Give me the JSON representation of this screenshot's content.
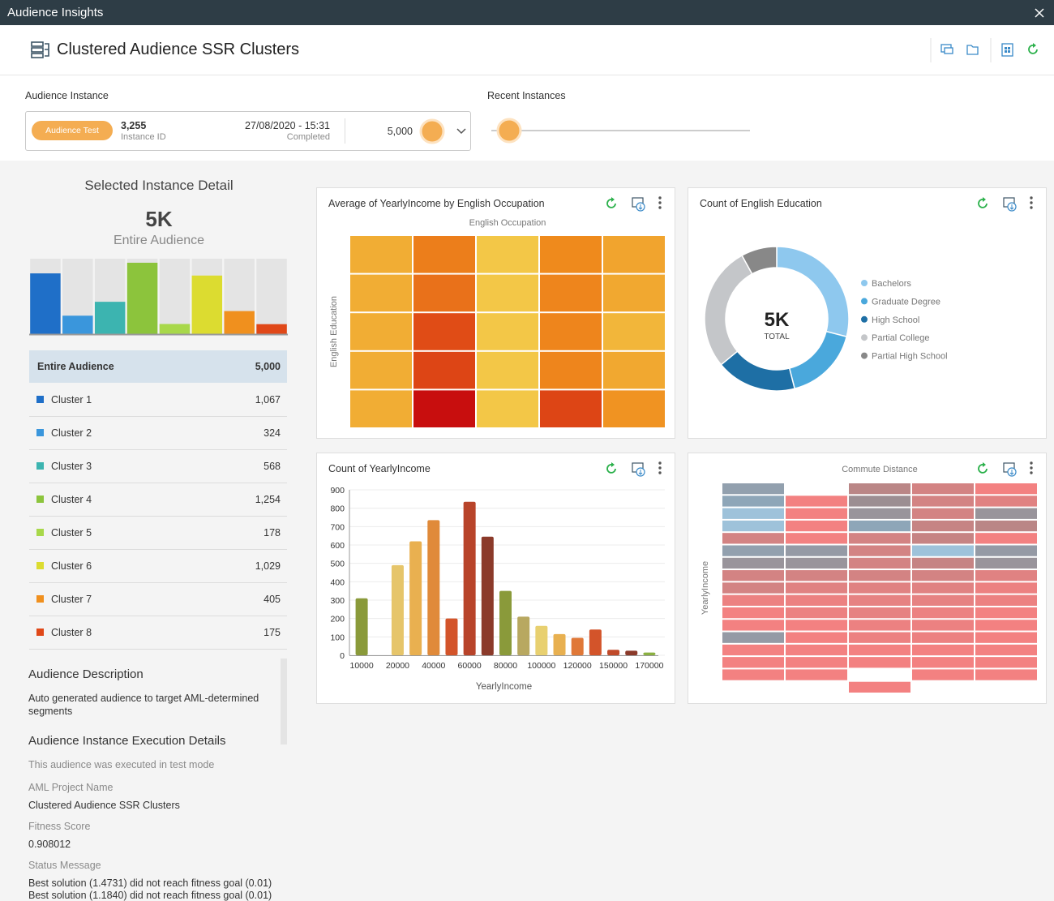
{
  "window": {
    "title": "Audience Insights"
  },
  "header": {
    "title": "Clustered Audience SSR Clusters"
  },
  "instance": {
    "label": "Audience Instance",
    "tag": "Audience Test",
    "id": "3,255",
    "id_label": "Instance ID",
    "date": "27/08/2020 - 15:31",
    "status": "Completed",
    "count": "5,000"
  },
  "recent": {
    "label": "Recent Instances"
  },
  "detail": {
    "title": "Selected Instance Detail",
    "total": "5K",
    "total_label": "Entire Audience",
    "table_header": {
      "name": "Entire Audience",
      "value": "5,000"
    }
  },
  "description": {
    "title": "Audience Description",
    "text": "Auto generated audience to target AML-determined segments"
  },
  "execution": {
    "title": "Audience Instance Execution Details",
    "note": "This audience was executed in test mode",
    "fields": [
      {
        "label": "AML Project Name",
        "value": [
          "Clustered Audience SSR Clusters"
        ]
      },
      {
        "label": "Fitness Score",
        "value": [
          "0.908012"
        ]
      },
      {
        "label": "Status Message",
        "value": [
          "Best solution (1.4731) did not reach fitness goal (0.01)",
          "Best solution (1.1840) did not reach fitness goal (0.01)"
        ]
      }
    ]
  },
  "chart_data": [
    {
      "type": "bar",
      "categories": [
        "Cluster 1",
        "Cluster 2",
        "Cluster 3",
        "Cluster 4",
        "Cluster 5",
        "Cluster 6",
        "Cluster 7",
        "Cluster 8"
      ],
      "values": [
        1067,
        324,
        568,
        1254,
        178,
        1029,
        405,
        175
      ],
      "value_labels": [
        "1,067",
        "324",
        "568",
        "1,254",
        "178",
        "1,029",
        "405",
        "175"
      ],
      "colors": [
        "#1f6fc8",
        "#3a96dc",
        "#3cb4b0",
        "#8cc43c",
        "#a8d84a",
        "#dcdc30",
        "#f0901e",
        "#e04818"
      ],
      "ylim": [
        0,
        1325
      ]
    },
    {
      "type": "heatmap",
      "title": "Average of YearlyIncome by English Occupation",
      "x_label": "English Occupation",
      "y_label": "English Education",
      "categories": [
        null,
        null,
        null,
        null,
        null
      ],
      "y_categories": [
        null,
        null,
        null,
        null,
        null
      ],
      "values": [
        [
          30,
          55,
          10,
          50,
          35
        ],
        [
          30,
          60,
          10,
          52,
          33
        ],
        [
          30,
          75,
          10,
          52,
          25
        ],
        [
          30,
          78,
          10,
          52,
          33
        ],
        [
          30,
          100,
          10,
          78,
          45
        ]
      ],
      "zlim": [
        0,
        100
      ],
      "colorscale": [
        "#f3d250",
        "#f2b63a",
        "#ef8a1c",
        "#e04c16",
        "#c80e0e"
      ]
    },
    {
      "type": "pie",
      "title": "Count of English Education",
      "center_label": "5K",
      "center_sublabel": "TOTAL",
      "categories": [
        "Bachelors",
        "Graduate Degree",
        "High School",
        "Partial College",
        "Partial High School"
      ],
      "values": [
        1450,
        850,
        900,
        1400,
        400
      ],
      "colors": [
        "#8ec8ee",
        "#4aa8dc",
        "#1e6fa5",
        "#c4c6c9",
        "#888888"
      ]
    },
    {
      "type": "bar",
      "title": "Count of YearlyIncome",
      "x_label": "YearlyIncome",
      "categories": [
        "10000",
        null,
        "20000",
        null,
        "40000",
        null,
        "60000",
        null,
        "80000",
        null,
        "100000",
        null,
        "120000",
        null,
        "150000",
        null,
        "170000"
      ],
      "values": [
        310,
        0,
        490,
        620,
        735,
        200,
        835,
        645,
        350,
        210,
        160,
        115,
        95,
        140,
        30,
        25,
        15
      ],
      "colors": [
        "#8a9a3a",
        "#8a9a3a",
        "#e6c56a",
        "#e9b050",
        "#e08a3a",
        "#d3542a",
        "#b8442a",
        "#8b3a2a",
        "#8a9a3a",
        "#b8a860",
        "#e8d070",
        "#e8b050",
        "#e07838",
        "#d3542a",
        "#c04a2a",
        "#8b3a2a",
        "#8ab040"
      ],
      "ylim": [
        0,
        900
      ],
      "yticks": [
        0,
        100,
        200,
        300,
        400,
        500,
        600,
        700,
        800,
        900
      ],
      "grid": true
    },
    {
      "type": "heatmap",
      "x_label": "Commute Distance",
      "y_label": "YearlyIncome",
      "categories": [
        null,
        null,
        null,
        null,
        null
      ],
      "y_categories": [
        null,
        null,
        null,
        null,
        null,
        null,
        null,
        null,
        null,
        null,
        null,
        null,
        null,
        null,
        null,
        null,
        null
      ],
      "values": [
        [
          30,
          null,
          60,
          70,
          90
        ],
        [
          25,
          90,
          45,
          70,
          75
        ],
        [
          10,
          90,
          40,
          70,
          40
        ],
        [
          10,
          90,
          25,
          65,
          60
        ],
        [
          70,
          90,
          70,
          65,
          90
        ],
        [
          30,
          35,
          70,
          10,
          35
        ],
        [
          40,
          40,
          70,
          65,
          40
        ],
        [
          70,
          70,
          70,
          70,
          75
        ],
        [
          70,
          75,
          75,
          75,
          85
        ],
        [
          85,
          85,
          80,
          80,
          85
        ],
        [
          90,
          85,
          80,
          85,
          90
        ],
        [
          90,
          90,
          85,
          85,
          90
        ],
        [
          35,
          90,
          85,
          85,
          90
        ],
        [
          90,
          90,
          90,
          90,
          90
        ],
        [
          90,
          90,
          90,
          90,
          90
        ],
        [
          90,
          90,
          null,
          90,
          90
        ],
        [
          null,
          null,
          90,
          null,
          null
        ]
      ],
      "zlim": [
        0,
        100
      ],
      "colorscale": [
        "#a8d4f0",
        "#8ea6b8",
        "#a08888",
        "#e08282",
        "#ff8080"
      ]
    }
  ]
}
